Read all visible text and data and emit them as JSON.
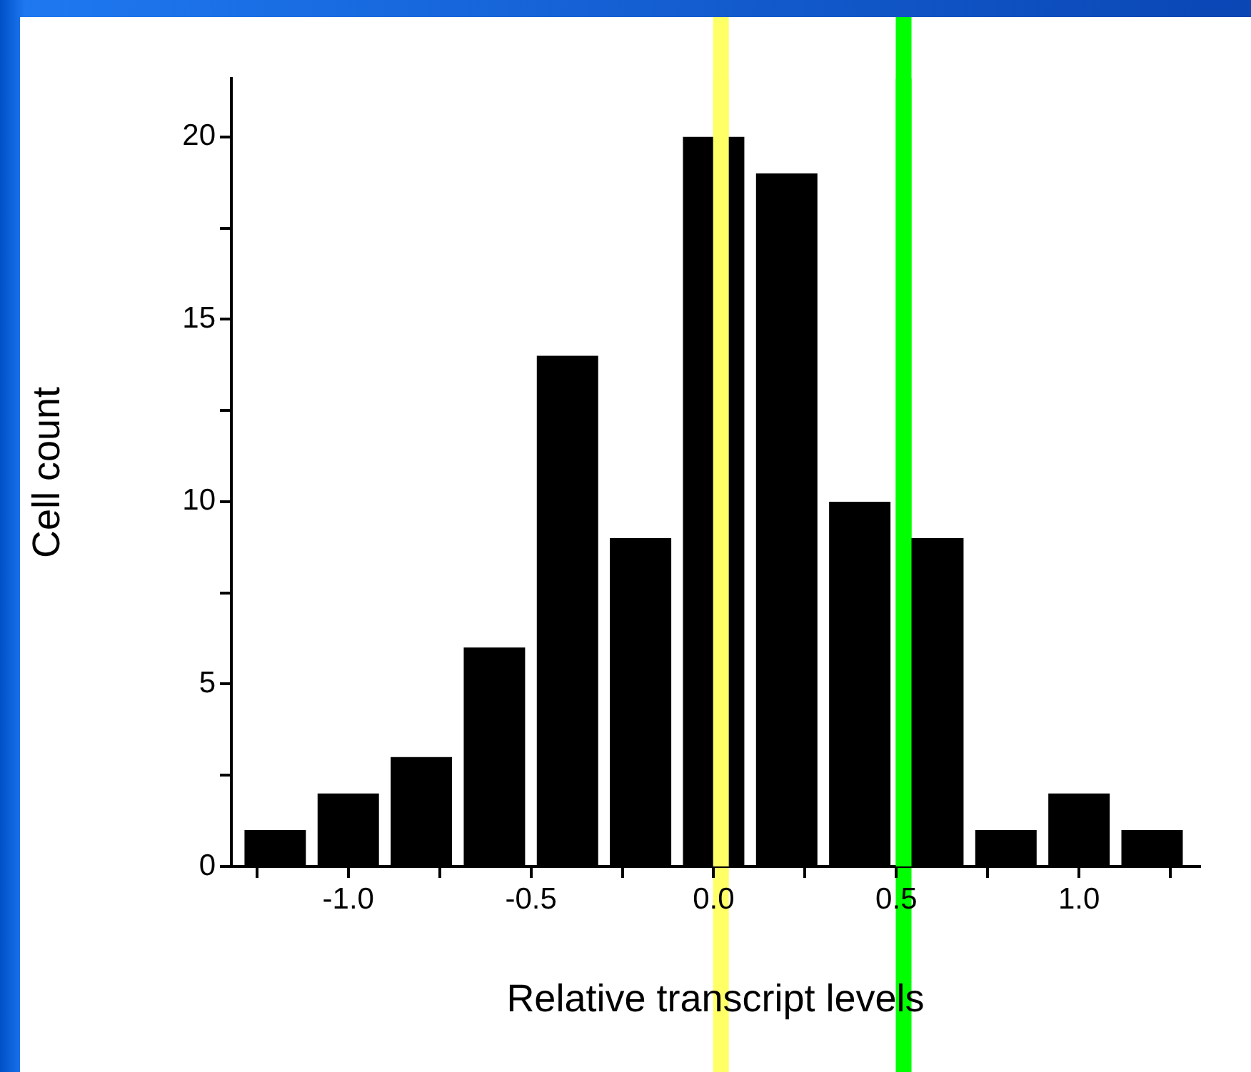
{
  "chart_data": {
    "type": "histogram",
    "xlabel": "Relative transcript levels",
    "ylabel": "Cell count",
    "bins": [
      -1.3,
      -1.1,
      -0.9,
      -0.7,
      -0.5,
      -0.3,
      -0.1,
      0.1,
      0.3,
      0.5,
      0.7,
      0.9,
      1.1,
      1.3
    ],
    "values": [
      1,
      2,
      3,
      6,
      14,
      9,
      20,
      19,
      10,
      9,
      1,
      2,
      1
    ],
    "color": "#000000",
    "xlim": [
      -1.32,
      1.33
    ],
    "xticks": [
      {
        "value": -1.25,
        "label": null
      },
      {
        "value": -1.0,
        "label": "-1.0"
      },
      {
        "value": -0.75,
        "label": null
      },
      {
        "value": -0.5,
        "label": "-0.5"
      },
      {
        "value": -0.25,
        "label": null
      },
      {
        "value": 0,
        "label": "0.0"
      },
      {
        "value": 0.25,
        "label": null
      },
      {
        "value": 0.5,
        "label": "0.5"
      },
      {
        "value": 0.75,
        "label": null
      },
      {
        "value": 1.0,
        "label": "1.0"
      },
      {
        "value": 1.25,
        "label": null
      }
    ],
    "ylim": [
      0,
      21.6
    ],
    "yticks": [
      0,
      {
        "value": 2.5,
        "label": null
      },
      5,
      {
        "value": 7.5,
        "label": null
      },
      10,
      {
        "value": 12.5,
        "label": null
      },
      15,
      {
        "value": 17.5,
        "label": null
      },
      20
    ],
    "ref_lines": [
      {
        "axis": "x",
        "value": 0.02,
        "color": "#ffff66"
      },
      {
        "axis": "x",
        "value": 0.52,
        "color": "#00ff00"
      }
    ],
    "grid": false,
    "legend": false
  }
}
